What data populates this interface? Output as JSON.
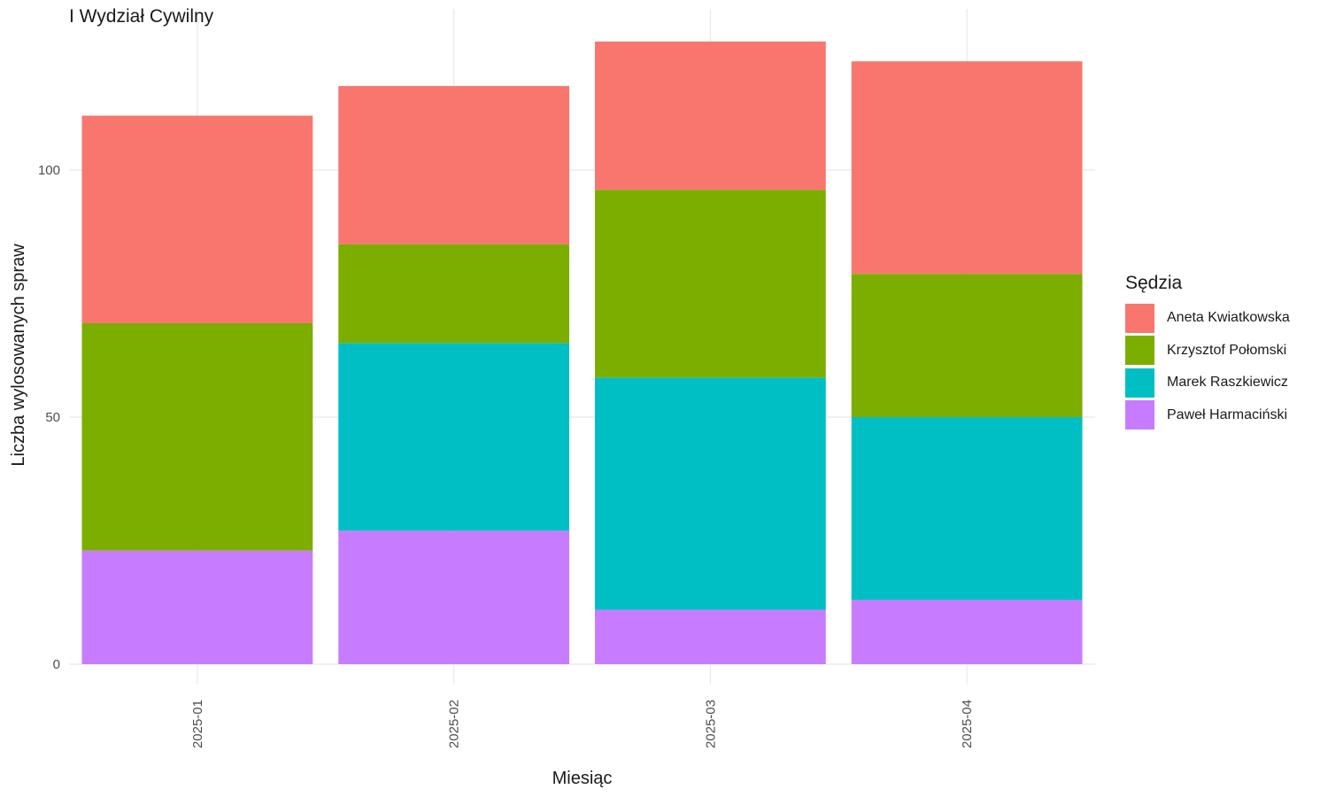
{
  "title": "I Wydział Cywilny",
  "chart_data": {
    "type": "bar",
    "stacked": true,
    "title": "I Wydział Cywilny",
    "xlabel": "Miesiąc",
    "ylabel": "Liczba wylosowanych spraw",
    "categories": [
      "2025-01",
      "2025-02",
      "2025-03",
      "2025-04"
    ],
    "ylim": [
      0,
      132
    ],
    "yticks": [
      0,
      50,
      100
    ],
    "grid": true,
    "legend_title": "Sędzia",
    "legend_position": "right",
    "series": [
      {
        "name": "Paweł Harmaciński",
        "color": "#C77CFF",
        "values": [
          23,
          27,
          11,
          13
        ]
      },
      {
        "name": "Marek Raszkiewicz",
        "color": "#00BFC4",
        "values": [
          0,
          38,
          47,
          37
        ]
      },
      {
        "name": "Krzysztof Połomski",
        "color": "#7CAE00",
        "values": [
          46,
          20,
          38,
          29
        ]
      },
      {
        "name": "Aneta Kwiatkowska",
        "color": "#F8766D",
        "values": [
          42,
          32,
          30,
          43
        ]
      }
    ],
    "legend_order": [
      "Aneta Kwiatkowska",
      "Krzysztof Połomski",
      "Marek Raszkiewicz",
      "Paweł Harmaciński"
    ]
  }
}
